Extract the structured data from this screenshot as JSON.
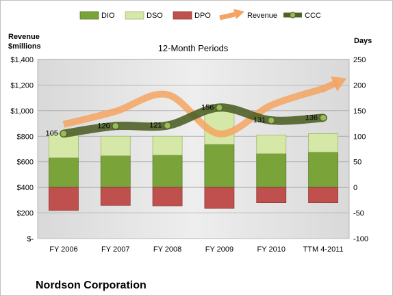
{
  "chart_data": {
    "type": "bar",
    "title": "12-Month Periods",
    "company": "Nordson Corporation",
    "y_left_label": [
      "Revenue",
      "$millions"
    ],
    "y_right_label": "Days",
    "categories": [
      "FY 2006",
      "FY 2007",
      "FY 2008",
      "FY 2009",
      "FY 2010",
      "TTM 4-2011"
    ],
    "y_left_lim": [
      0,
      1400
    ],
    "y_left_ticks": [
      0,
      200,
      400,
      600,
      800,
      1000,
      1200,
      1400
    ],
    "y_left_tick_labels": [
      "$-",
      "$200",
      "$400",
      "$600",
      "$800",
      "$1,000",
      "$1,200",
      "$1,400"
    ],
    "y_right_lim": [
      -100,
      250
    ],
    "y_right_ticks": [
      -100,
      -50,
      0,
      50,
      100,
      150,
      200,
      250
    ],
    "y_right_tick_labels": [
      "-100",
      "-50",
      "0",
      "50",
      "100",
      "150",
      "200",
      "250"
    ],
    "legend_position": "top",
    "series": [
      {
        "name": "DIO",
        "kind": "stacked-bar-positive",
        "axis": "right",
        "color": "#7aa33a",
        "values": [
          58,
          62,
          63,
          84,
          66,
          69
        ]
      },
      {
        "name": "DSO",
        "kind": "stacked-bar-positive",
        "axis": "right",
        "color": "#d5e8a8",
        "values": [
          47,
          38,
          37,
          72,
          36,
          36
        ]
      },
      {
        "name": "DPO",
        "kind": "stacked-bar-negative",
        "axis": "right",
        "color": "#c0504d",
        "values": [
          45,
          35,
          36,
          41,
          30,
          30
        ]
      },
      {
        "name": "Revenue",
        "kind": "smooth-line-arrow",
        "axis": "left",
        "color": "#f4a460",
        "values": [
          893,
          994,
          1125,
          819,
          1042,
          1172
        ]
      },
      {
        "name": "CCC",
        "kind": "smooth-line-markers",
        "axis": "right",
        "color": "#4f6228",
        "values": [
          105,
          120,
          121,
          156,
          131,
          136
        ],
        "labels": [
          "105",
          "120",
          "121",
          "156",
          "131",
          "136"
        ]
      }
    ]
  }
}
